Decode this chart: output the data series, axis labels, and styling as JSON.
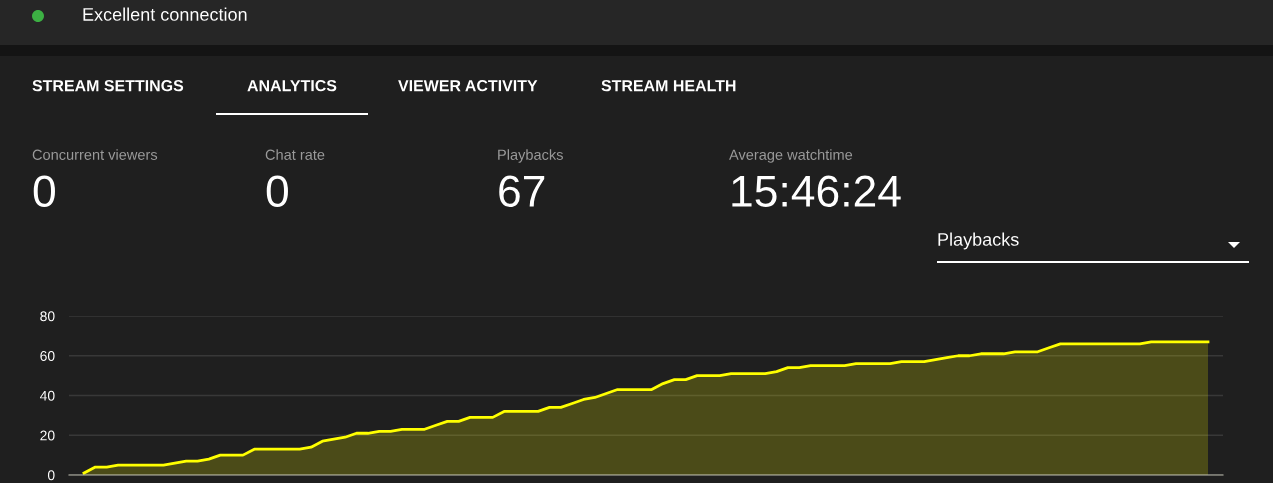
{
  "chart_data": [
    {
      "type": "other",
      "annotations": [
        "Excellent connection",
        "STREAM SETTINGS",
        "ANALYTICS",
        "VIEWER ACTIVITY",
        "STREAM HEALTH",
        "Concurrent viewers",
        "0",
        "Chat rate",
        "0",
        "Playbacks",
        "67",
        "Average watchtime",
        "15:46:24",
        "Playbacks"
      ]
    },
    {
      "type": "area",
      "categories": [
        null,
        null,
        null,
        null,
        null,
        null,
        null,
        null,
        null,
        null,
        null,
        null,
        null,
        null,
        null,
        null,
        null,
        null,
        null,
        null,
        null,
        null,
        null,
        null,
        null,
        null,
        null,
        null,
        null,
        null,
        null,
        null,
        null,
        null,
        null,
        null,
        null,
        null,
        null,
        null,
        null,
        null,
        null,
        null,
        null,
        null,
        null,
        null,
        null,
        null,
        null,
        null,
        null,
        null,
        null,
        null,
        null,
        null,
        null,
        null,
        null,
        null,
        null,
        null,
        null,
        null,
        null,
        null,
        null,
        null,
        null,
        null,
        null,
        null,
        null,
        null,
        null,
        null,
        null,
        null,
        null,
        null,
        null,
        null,
        null,
        null,
        null,
        null,
        null,
        null,
        null,
        null,
        null,
        null,
        null,
        null,
        null,
        null,
        null,
        null
      ],
      "series": [
        {
          "color": "#ffff00",
          "values": [
            1,
            4,
            4,
            5,
            5,
            5,
            5,
            5,
            6,
            7,
            7,
            8,
            10,
            10,
            10,
            13,
            13,
            13,
            13,
            13,
            14,
            17,
            18,
            19,
            21,
            21,
            22,
            22,
            23,
            23,
            23,
            25,
            27,
            27,
            29,
            29,
            29,
            32,
            32,
            32,
            32,
            34,
            34,
            36,
            38,
            39,
            41,
            43,
            43,
            43,
            43,
            46,
            48,
            48,
            50,
            50,
            50,
            51,
            51,
            51,
            51,
            52,
            54,
            54,
            55,
            55,
            55,
            55,
            56,
            56,
            56,
            56,
            57,
            57,
            57,
            58,
            59,
            60,
            60,
            61,
            61,
            61,
            62,
            62,
            62,
            64,
            66,
            66,
            66,
            66,
            66,
            66,
            66,
            66,
            67,
            67,
            67,
            67,
            67,
            67
          ]
        }
      ],
      "ylim": [
        0,
        80
      ],
      "yticks": [
        0,
        20,
        40,
        60,
        80
      ],
      "grid": "y",
      "tick_labels": "y"
    }
  ]
}
